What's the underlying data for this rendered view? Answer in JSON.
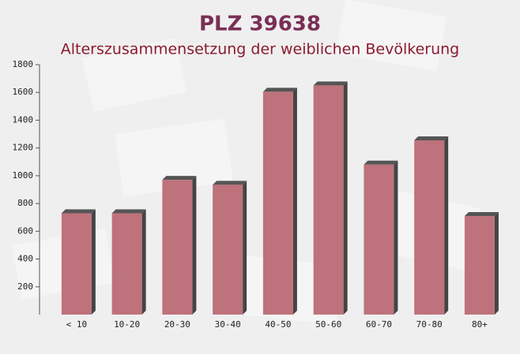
{
  "chart_data": {
    "type": "bar",
    "title": "PLZ 39638",
    "subtitle": "Alterszusammensetzung der weiblichen Bevölkerung",
    "categories": [
      "< 10",
      "10-20",
      "20-30",
      "30-40",
      "40-50",
      "50-60",
      "60-70",
      "70-80",
      "80+"
    ],
    "values": [
      730,
      730,
      970,
      935,
      1605,
      1650,
      1080,
      1255,
      710
    ],
    "color": "#b8646f",
    "ylim": [
      0,
      1800
    ],
    "yticks": [
      200,
      400,
      600,
      800,
      1000,
      1200,
      1400,
      1600,
      1800
    ]
  }
}
